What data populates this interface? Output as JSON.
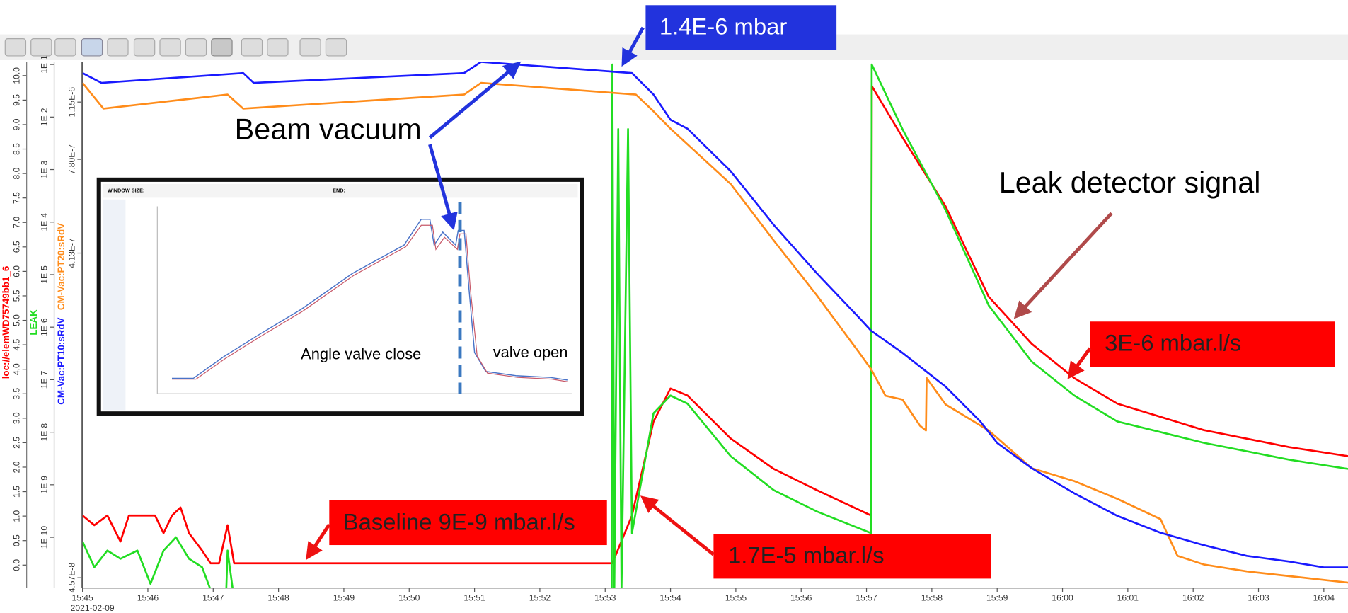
{
  "chart_data": {
    "type": "line",
    "x_date": "2021-02-09",
    "xlim": [
      945,
      964.37
    ],
    "xticks": [
      {
        "value": 945,
        "label": "15:45"
      },
      {
        "value": 946,
        "label": "15:46"
      },
      {
        "value": 947,
        "label": "15:47"
      },
      {
        "value": 948,
        "label": "15:48"
      },
      {
        "value": 949,
        "label": "15:49"
      },
      {
        "value": 950,
        "label": "15:50"
      },
      {
        "value": 951,
        "label": "15:51"
      },
      {
        "value": 952,
        "label": "15:52"
      },
      {
        "value": 953,
        "label": "15:53"
      },
      {
        "value": 954,
        "label": "15:54"
      },
      {
        "value": 955,
        "label": "15:55"
      },
      {
        "value": 956,
        "label": "15:56"
      },
      {
        "value": 957,
        "label": "15:57"
      },
      {
        "value": 958,
        "label": "15:58"
      },
      {
        "value": 959,
        "label": "15:59"
      },
      {
        "value": 960,
        "label": "16:00"
      },
      {
        "value": 961,
        "label": "16:01"
      },
      {
        "value": 962,
        "label": "16:02"
      },
      {
        "value": 963,
        "label": "16:03"
      },
      {
        "value": 964,
        "label": "16:04"
      }
    ],
    "y_axes": [
      {
        "log": false,
        "ylim": [
          -0.47,
          10.28
        ],
        "yticks": [
          {
            "value": 0,
            "label": "0.0"
          },
          0.5,
          {
            "value": 1,
            "label": "1.0"
          },
          1.5,
          {
            "value": 2,
            "label": "2.0"
          },
          2.5,
          {
            "value": 3,
            "label": "3.0"
          },
          3.5,
          {
            "value": 4,
            "label": "4.0"
          },
          4.5,
          {
            "value": 5,
            "label": "5.0"
          },
          5.5,
          {
            "value": 6,
            "label": "6.0"
          },
          6.5,
          {
            "value": 7,
            "label": "7.0"
          },
          7.5,
          {
            "value": 8,
            "label": "8.0"
          },
          8.5,
          {
            "value": 9,
            "label": "9.0"
          },
          9.5,
          {
            "value": 10,
            "label": "10.0"
          }
        ]
      },
      {
        "log": true,
        "ylim": [
          1.08e-11,
          0.112
        ],
        "yticks": [
          {
            "value": 1e-10,
            "label": "1E-10"
          },
          {
            "value": 1e-09,
            "label": "1E-9"
          },
          {
            "value": 1e-08,
            "label": "1E-8"
          },
          {
            "value": 1e-07,
            "label": "1E-7"
          },
          {
            "value": 1e-06,
            "label": "1E-6"
          },
          {
            "value": 1e-05,
            "label": "1E-5"
          },
          {
            "value": 0.0001,
            "label": "1E-4"
          },
          {
            "value": 0.001,
            "label": "1E-3"
          },
          {
            "value": 0.01,
            "label": "1E-2"
          },
          {
            "value": 0.1,
            "label": "1E-1"
          }
        ]
      },
      {
        "log": true,
        "ylim": [
          4.26e-08,
          1.51e-06
        ],
        "yticks": [
          {
            "value": 4.57e-08,
            "label": "4.57E-8"
          },
          {
            "value": 4.13e-07,
            "label": "4.13E-7"
          },
          {
            "value": 7.8e-07,
            "label": "7.80E-7"
          },
          {
            "value": 1.15e-06,
            "label": "1.15E-6"
          }
        ]
      }
    ],
    "series": [
      {
        "name": "loc://elemWD75749bb1_6",
        "color": "#ff0000",
        "axis": 1,
        "x": [
          945,
          945.18,
          945.38,
          945.58,
          945.71,
          945.91,
          946.11,
          946.24,
          946.37,
          946.5,
          946.63,
          946.83,
          946.96,
          947.09,
          947.22,
          947.32,
          953.11,
          953.41,
          953.74,
          954.0,
          954.26,
          954.92,
          955.58,
          956.24,
          957.07,
          957.08,
          957.55,
          958.21,
          958.87,
          959.53,
          960.18,
          960.84,
          962.16,
          963.47,
          964.37
        ],
        "values": [
          2.6e-10,
          1.7e-10,
          2.6e-10,
          8.3e-11,
          2.6e-10,
          2.6e-10,
          2.6e-10,
          1.2e-10,
          2.6e-10,
          3.7e-10,
          1.2e-10,
          5.6e-11,
          3.2e-11,
          3.2e-11,
          1.7e-10,
          3.2e-11,
          3.2e-11,
          2.6e-10,
          1.6e-08,
          6.8e-08,
          5e-08,
          7.6e-09,
          2e-09,
          7.9e-10,
          2.6e-10,
          0.039,
          0.0041,
          0.0002,
          3.8e-06,
          4.8e-07,
          1.07e-07,
          3.5e-08,
          1.1e-08,
          5.2e-09,
          3.5e-09
        ]
      },
      {
        "name": "LEAK",
        "color": "#22dd22",
        "axis": 1,
        "x": [
          945,
          945.18,
          945.38,
          945.58,
          945.84,
          946.04,
          946.24,
          946.43,
          946.63,
          946.83,
          946.96,
          947.2,
          947.22,
          947.3,
          953.1,
          953.11,
          953.14,
          953.2,
          953.25,
          953.35,
          953.41,
          953.74,
          954.0,
          954.26,
          954.92,
          955.58,
          956.24,
          957.07,
          957.08,
          957.55,
          958.21,
          958.87,
          959.53,
          960.18,
          960.84,
          962.16,
          963.47,
          964.37
        ],
        "values": [
          8.3e-11,
          2.7e-11,
          5.6e-11,
          3.9e-11,
          5.6e-11,
          1.3e-11,
          5.6e-11,
          1e-10,
          3.9e-11,
          2.7e-11,
          1e-11,
          1e-11,
          5.6e-11,
          1e-11,
          1e-11,
          0.1,
          1e-11,
          0.0059,
          1e-11,
          0.0059,
          1.2e-10,
          2.3e-08,
          5e-08,
          3.5e-08,
          3.5e-09,
          7.9e-10,
          3.1e-10,
          1.2e-10,
          0.1,
          0.0059,
          0.00017,
          2.6e-06,
          2.2e-07,
          5e-08,
          1.6e-08,
          6.3e-09,
          3e-09,
          2e-09
        ]
      },
      {
        "name": "CM-Vac:PT20:sRdV",
        "color": "#ff8c1a",
        "axis": 2,
        "x": [
          945,
          945.32,
          947.22,
          947.46,
          950.84,
          951.1,
          953.47,
          953.74,
          954.0,
          954.92,
          955.58,
          956.24,
          956.89,
          957.07,
          957.29,
          957.55,
          957.82,
          957.91,
          957.92,
          958.21,
          958.87,
          959.53,
          960.18,
          960.84,
          961.5,
          961.76,
          962.16,
          962.82,
          963.47,
          964.37
        ],
        "values": [
          1.31e-06,
          1.1e-06,
          1.21e-06,
          1.1e-06,
          1.21e-06,
          1.31e-06,
          1.21e-06,
          1.08e-06,
          9.6e-07,
          6.6e-07,
          4.5e-07,
          3.1e-07,
          2.1e-07,
          1.88e-07,
          1.57e-07,
          1.53e-07,
          1.28e-07,
          1.24e-07,
          1.77e-07,
          1.48e-07,
          1.24e-07,
          9.6e-08,
          8.8e-08,
          7.8e-08,
          6.8e-08,
          5.3e-08,
          5e-08,
          4.77e-08,
          4.62e-08,
          4.42e-08
        ]
      },
      {
        "name": "CM-Vac:PT10:sRdV",
        "color": "#1a1aff",
        "axis": 2,
        "x": [
          945,
          945.29,
          947.46,
          947.62,
          950.84,
          951.1,
          953.41,
          953.74,
          954.0,
          954.26,
          954.92,
          955.58,
          956.24,
          956.89,
          957.07,
          957.55,
          958.21,
          958.74,
          959.0,
          959.53,
          960.18,
          960.84,
          961.5,
          962.16,
          962.82,
          963.47,
          964.0,
          964.37
        ],
        "values": [
          1.4e-06,
          1.31e-06,
          1.4e-06,
          1.31e-06,
          1.4e-06,
          1.51e-06,
          1.4e-06,
          1.21e-06,
          1.02e-06,
          9.6e-07,
          7.2e-07,
          5e-07,
          3.6e-07,
          2.66e-07,
          2.44e-07,
          2.1e-07,
          1.67e-07,
          1.32e-07,
          1.14e-07,
          9.6e-08,
          8.1e-08,
          6.95e-08,
          6.2e-08,
          5.7e-08,
          5.3e-08,
          5.1e-08,
          4.9e-08,
          4.9e-08
        ]
      }
    ],
    "annotations": [
      "1.4E-6 mbar",
      "Beam vacuum",
      "Leak detector signal",
      "3E-6 mbar.l/s",
      "Baseline 9E-9 mbar.l/s",
      "1.7E-5 mbar.l/s"
    ],
    "inset_texts": [
      "WINDOW SIZE:",
      "END:",
      "Angle valve close",
      "valve open"
    ]
  }
}
